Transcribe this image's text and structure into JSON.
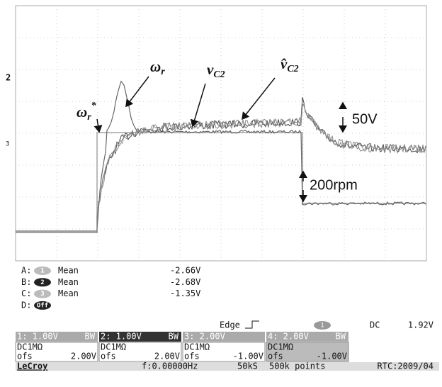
{
  "annotations": [
    {
      "symbol": "ω",
      "sub": "r",
      "sup": "*"
    },
    {
      "symbol": "ω",
      "sub": "r"
    },
    {
      "symbol": "v",
      "sub": "C2"
    },
    {
      "symbol": "v̂",
      "sub": "C2"
    }
  ],
  "scale_labels": [
    "50V",
    "200rpm"
  ],
  "left_markers": [
    "2",
    "3"
  ],
  "measurements": [
    {
      "label": "A:",
      "channel": "1",
      "stat": "Mean",
      "value": "-2.66V"
    },
    {
      "label": "B:",
      "channel": "2",
      "stat": "Mean",
      "value": "-2.68V"
    },
    {
      "label": "C:",
      "channel": "3",
      "stat": "Mean",
      "value": "-1.35V"
    },
    {
      "label": "D:",
      "channel": "Off"
    }
  ],
  "trigger": {
    "mode": "Edge",
    "source": "1",
    "coupling": "DC",
    "level": "1.92V"
  },
  "channels": [
    {
      "header": "1: 1.00V",
      "bw": "BW",
      "coupling": "DC1MΩ",
      "ofs_label": "ofs",
      "offset": "2.00V"
    },
    {
      "header": "2: 1.00V",
      "bw": "BW",
      "coupling": "DC1MΩ",
      "ofs_label": "ofs",
      "offset": "2.00V"
    },
    {
      "header": "3: 2.00V",
      "coupling": "DC1MΩ",
      "ofs_label": "ofs",
      "offset": "-1.00V"
    },
    {
      "header": "4: 2.00V",
      "bw": "BW",
      "coupling": "DC1MΩ",
      "ofs_label": "ofs",
      "offset": "-1.00V"
    }
  ],
  "status_bar": {
    "brand": "LeCroy",
    "frequency": "f:0.00000Hz",
    "sample_rate": "50kS",
    "points": "500k points",
    "clock": "RTC:2009/04"
  }
}
